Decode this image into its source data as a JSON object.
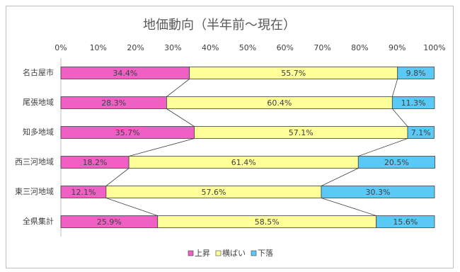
{
  "chart_data": {
    "type": "bar",
    "orientation": "horizontal",
    "stacked": true,
    "title": "地価動向（半年前～現在）",
    "categories": [
      "名古屋市",
      "尾張地域",
      "知多地域",
      "西三河地域",
      "東三河地域",
      "全県集計"
    ],
    "series": [
      {
        "name": "上昇",
        "color": "#f05fc4",
        "values": [
          34.4,
          28.3,
          35.7,
          18.2,
          12.1,
          25.9
        ],
        "value_labels": [
          "34.4%",
          "28.3%",
          "35.7%",
          "18.2%",
          "12.1%",
          "25.9%"
        ]
      },
      {
        "name": "横ばい",
        "color": "#ffff99",
        "values": [
          55.7,
          60.4,
          57.1,
          61.4,
          57.6,
          58.5
        ],
        "value_labels": [
          "55.7%",
          "60.4%",
          "57.1%",
          "61.4%",
          "57.6%",
          "58.5%"
        ]
      },
      {
        "name": "下落",
        "color": "#5bc9f5",
        "values": [
          9.8,
          11.3,
          7.1,
          20.5,
          30.3,
          15.6
        ],
        "value_labels": [
          "9.8%",
          "11.3%",
          "7.1%",
          "20.5%",
          "30.3%",
          "15.6%"
        ]
      }
    ],
    "xlim": [
      0,
      100
    ],
    "xticks": [
      {
        "value": 0,
        "label": "0%"
      },
      {
        "value": 10,
        "label": "10%"
      },
      {
        "value": 20,
        "label": "20%"
      },
      {
        "value": 30,
        "label": "30%"
      },
      {
        "value": 40,
        "label": "40%"
      },
      {
        "value": 50,
        "label": "50%"
      },
      {
        "value": 60,
        "label": "60%"
      },
      {
        "value": 70,
        "label": "70%"
      },
      {
        "value": 80,
        "label": "80%"
      },
      {
        "value": 90,
        "label": "90%"
      },
      {
        "value": 100,
        "label": "100%"
      }
    ],
    "grid": false,
    "legend": "bottom",
    "series_lines": true
  }
}
